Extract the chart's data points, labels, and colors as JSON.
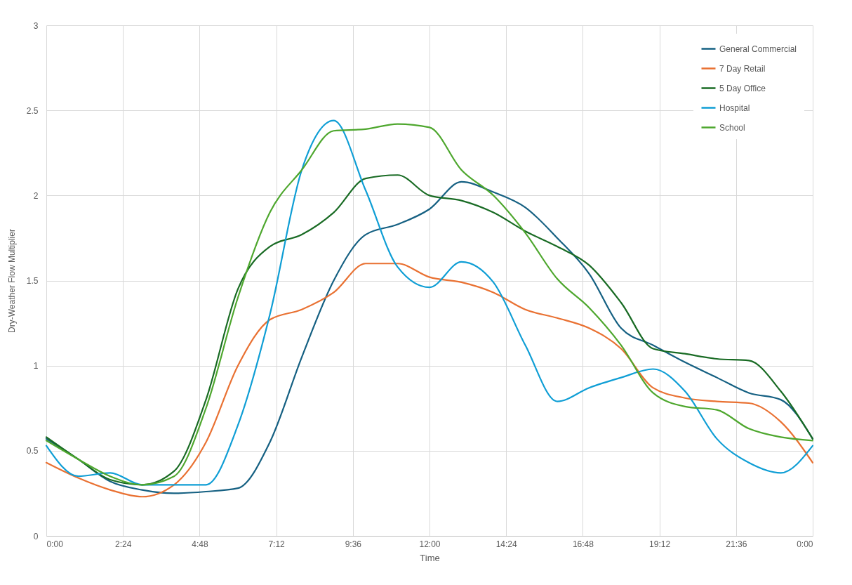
{
  "chart_data": {
    "type": "line",
    "xlabel": "Time",
    "ylabel": "Dry-Weather Flow Multiplier",
    "x": [
      0,
      1,
      2,
      3,
      4,
      5,
      6,
      7,
      8,
      9,
      10,
      11,
      12,
      13,
      14,
      15,
      16,
      17,
      18,
      19,
      20,
      21,
      22,
      23,
      24
    ],
    "series": [
      {
        "name": "General Commercial",
        "color": "#156082",
        "values": [
          0.57,
          0.45,
          0.32,
          0.27,
          0.25,
          0.26,
          0.28,
          0.55,
          1.05,
          1.5,
          1.77,
          1.83,
          1.92,
          2.08,
          2.02,
          1.93,
          1.75,
          1.54,
          1.22,
          1.12,
          1.02,
          0.93,
          0.84,
          0.8,
          0.57
        ]
      },
      {
        "name": "7 Day Retail",
        "color": "#e97132",
        "values": [
          0.43,
          0.34,
          0.27,
          0.23,
          0.3,
          0.55,
          1.0,
          1.27,
          1.33,
          1.43,
          1.6,
          1.6,
          1.52,
          1.49,
          1.43,
          1.33,
          1.28,
          1.22,
          1.1,
          0.87,
          0.81,
          0.79,
          0.78,
          0.67,
          0.43
        ]
      },
      {
        "name": "5 Day Office",
        "color": "#196b24",
        "values": [
          0.58,
          0.45,
          0.33,
          0.3,
          0.38,
          0.8,
          1.45,
          1.7,
          1.77,
          1.9,
          2.1,
          2.12,
          2.0,
          1.97,
          1.9,
          1.79,
          1.7,
          1.59,
          1.37,
          1.1,
          1.07,
          1.04,
          1.03,
          0.85,
          0.57
        ]
      },
      {
        "name": "Hospital",
        "color": "#0f9ed5",
        "values": [
          0.53,
          0.35,
          0.37,
          0.3,
          0.3,
          0.3,
          0.65,
          1.3,
          2.15,
          2.44,
          2.03,
          1.58,
          1.46,
          1.61,
          1.49,
          1.12,
          0.79,
          0.87,
          0.93,
          0.98,
          0.85,
          0.57,
          0.43,
          0.37,
          0.53
        ]
      },
      {
        "name": "School",
        "color": "#4ea72e",
        "values": [
          0.56,
          0.45,
          0.35,
          0.3,
          0.35,
          0.75,
          1.4,
          1.9,
          2.15,
          2.38,
          2.39,
          2.42,
          2.4,
          2.15,
          2.0,
          1.78,
          1.51,
          1.34,
          1.12,
          0.84,
          0.76,
          0.74,
          0.63,
          0.58,
          0.56
        ]
      }
    ],
    "xlim": [
      0,
      24
    ],
    "xticks": [
      {
        "value": 0,
        "label": "0:00"
      },
      {
        "value": 2.4,
        "label": "2:24"
      },
      {
        "value": 4.8,
        "label": "4:48"
      },
      {
        "value": 7.2,
        "label": "7:12"
      },
      {
        "value": 9.6,
        "label": "9:36"
      },
      {
        "value": 12,
        "label": "12:00"
      },
      {
        "value": 14.4,
        "label": "14:24"
      },
      {
        "value": 16.8,
        "label": "16:48"
      },
      {
        "value": 19.2,
        "label": "19:12"
      },
      {
        "value": 21.6,
        "label": "21:36"
      },
      {
        "value": 24,
        "label": "0:00"
      }
    ],
    "ylim": [
      0,
      3
    ],
    "yticks": [
      0,
      0.5,
      1,
      1.5,
      2,
      2.5,
      3
    ],
    "grid": true,
    "legend": "top right"
  }
}
